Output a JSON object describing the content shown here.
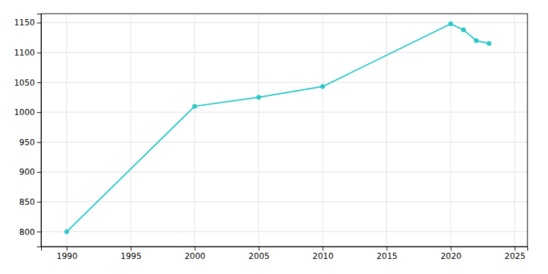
{
  "chart_data": {
    "type": "line",
    "x": [
      1990,
      2000,
      2005,
      2010,
      2020,
      2021,
      2022,
      2023
    ],
    "values": [
      800,
      1010,
      1025,
      1043,
      1148,
      1138,
      1120,
      1115
    ],
    "color": "#2ec8c8",
    "marker": "circle",
    "xlim": [
      1988,
      2026
    ],
    "ylim": [
      775,
      1165
    ],
    "xticks": [
      1990,
      1995,
      2000,
      2005,
      2010,
      2015,
      2020,
      2025
    ],
    "yticks": [
      800,
      850,
      900,
      950,
      1000,
      1050,
      1100,
      1150
    ],
    "grid": true
  }
}
